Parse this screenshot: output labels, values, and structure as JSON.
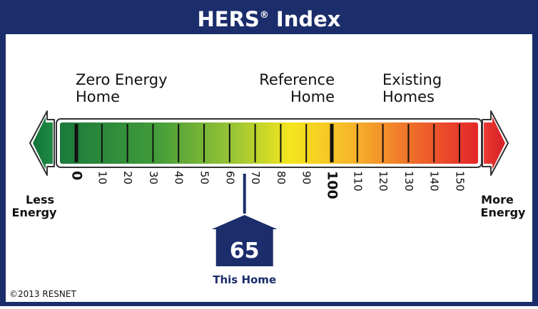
{
  "header": {
    "title": "HERS",
    "registered": "®",
    "suffix": " Index"
  },
  "labels": {
    "zero_energy_line1": "Zero Energy",
    "zero_energy_line2": "Home",
    "reference_line1": "Reference",
    "reference_line2": "Home",
    "existing_line1": "Existing",
    "existing_line2": "Homes",
    "less_line1": "Less",
    "less_line2": "Energy",
    "more_line1": "More",
    "more_line2": "Energy"
  },
  "scale": {
    "min": 0,
    "max": 160,
    "ticks": [
      "0",
      "10",
      "20",
      "30",
      "40",
      "50",
      "60",
      "70",
      "80",
      "90",
      "100",
      "110",
      "120",
      "130",
      "140",
      "150"
    ],
    "major_ticks": [
      "0",
      "100"
    ]
  },
  "marker": {
    "score": "65",
    "caption": "This Home"
  },
  "copyright": "©2013 RESNET",
  "colors": {
    "navy": "#1b2d6b",
    "dark_green": "#1e7a3a",
    "green": "#4aa83a",
    "yellow": "#f4e61e",
    "orange": "#f39a2a",
    "red": "#e4262a"
  }
}
